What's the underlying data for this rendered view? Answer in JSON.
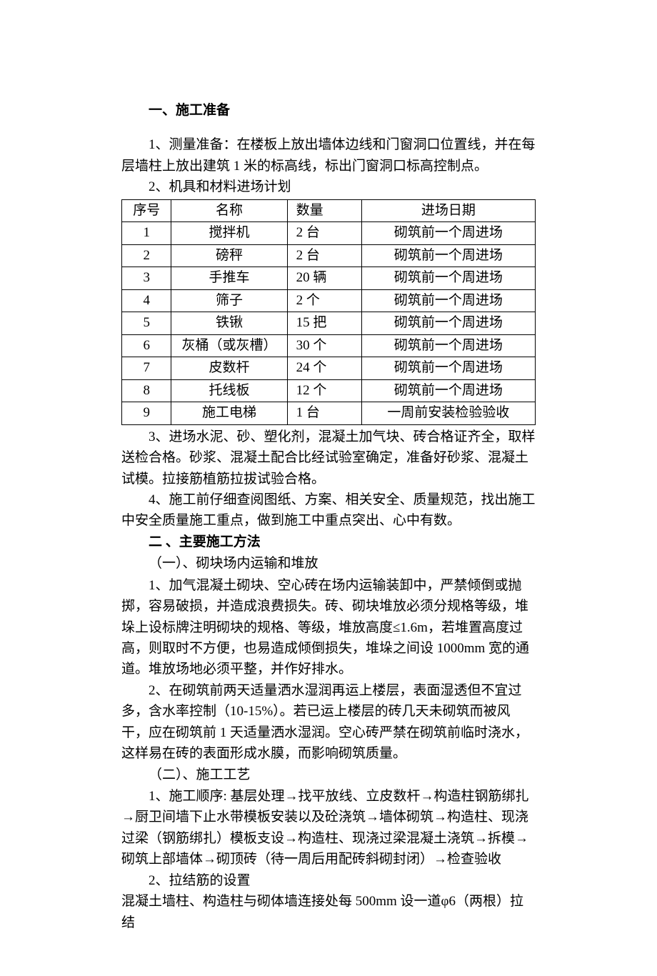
{
  "section1": {
    "heading": "一、施工准备",
    "para1": "1、测量准备：在楼板上放出墙体边线和门窗洞口位置线，并在每层墙柱上放出建筑 1 米的标高线，标出门窗洞口标高控制点。",
    "para2": "2、机具和材料进场计划",
    "table": {
      "columns": [
        "序号",
        "名称",
        "数量",
        "进场日期"
      ],
      "rows": [
        [
          "1",
          "搅拌机",
          "2 台",
          "砌筑前一个周进场"
        ],
        [
          "2",
          "磅秤",
          "2 台",
          "砌筑前一个周进场"
        ],
        [
          "3",
          "手推车",
          "20 辆",
          "砌筑前一个周进场"
        ],
        [
          "4",
          "筛子",
          "2 个",
          "砌筑前一个周进场"
        ],
        [
          "5",
          "铁锹",
          "15 把",
          "砌筑前一个周进场"
        ],
        [
          "6",
          "灰桶（或灰槽）",
          "30 个",
          "砌筑前一个周进场"
        ],
        [
          "7",
          "皮数杆",
          "24 个",
          "砌筑前一个周进场"
        ],
        [
          "8",
          "托线板",
          "12 个",
          "砌筑前一个周进场"
        ],
        [
          "9",
          "施工电梯",
          "1 台",
          "一周前安装检验验收"
        ]
      ]
    },
    "para3": "3、进场水泥、砂、塑化剂，混凝土加气块、砖合格证齐全，取样送检合格。砂浆、混凝土配合比经试验室确定，准备好砂浆、混凝土试模。拉接筋植筋拉拔试验合格。",
    "para4": "4、施工前仔细查阅图纸、方案、相关安全、质量规范，找出施工中安全质量施工重点，做到施工中重点突出、心中有数。"
  },
  "section2": {
    "heading": "二 、主要施工方法",
    "sub1": "（一）、砌块场内运输和堆放",
    "para1": "1、加气混凝土砌块、空心砖在场内运输装卸中，严禁倾倒或抛掷，容易破损，并造成浪费损失。砖、砌块堆放必须分规格等级，堆垛上设标牌注明砌块的规格、等级，堆放高度≤1.6m，若堆置高度过高，则取时不方便，也易造成倾倒损失，堆垛之间设 1000mm 宽的通道。堆放场地必须平整，并作好排水。",
    "para2": "2、在砌筑前两天适量洒水湿润再运上楼层，表面湿透但不宜过多，含水率控制（10-15%）。若已运上楼层的砖几天未砌筑而被风干，应在砌筑前 1 天适量洒水湿润。空心砖严禁在砌筑前临时浇水，这样易在砖的表面形成水膜，而影响砌筑质量。",
    "sub2": "（二）、施工工艺",
    "para3": "1、施工顺序: 基层处理→找平放线、立皮数杆→构造柱钢筋绑扎→厨卫间墙下止水带模板安装以及砼浇筑→墙体砌筑→构造柱、现浇过梁（钢筋绑扎）模板支设→构造柱、现浇过梁混凝土浇筑→拆模→砌筑上部墙体→砌顶砖（待一周后用配砖斜砌封闭）→检查验收",
    "para4": "2、拉结筋的设置",
    "para5": "混凝土墙柱、构造柱与砌体墙连接处每 500mm 设一道φ6（两根）拉结"
  }
}
